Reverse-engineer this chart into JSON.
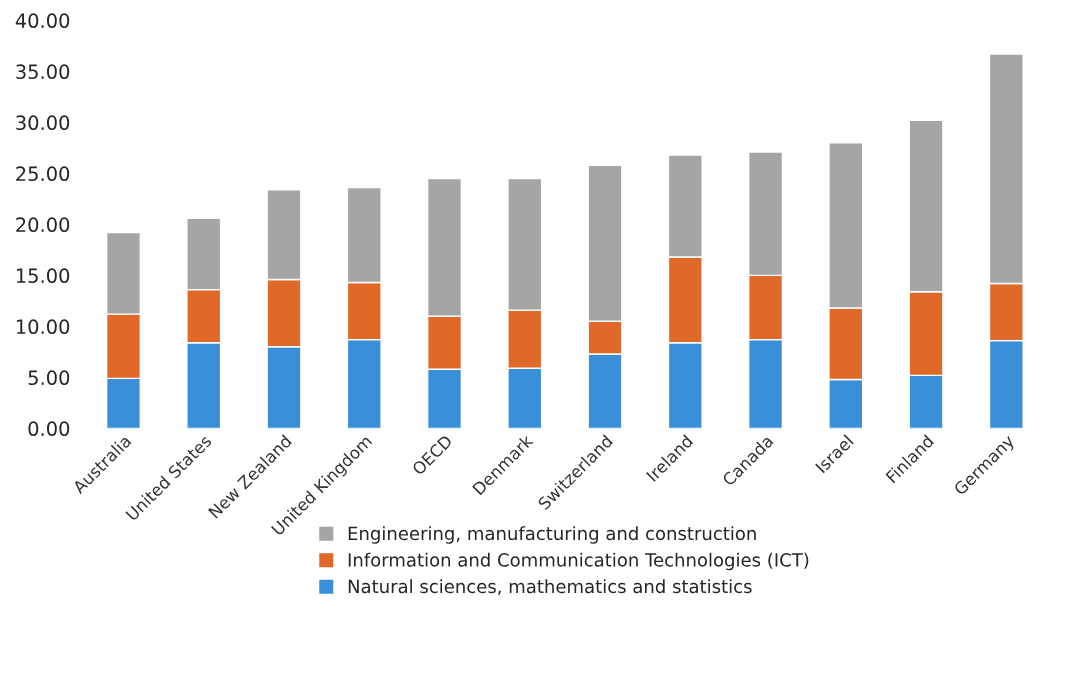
{
  "chart_data": {
    "type": "bar",
    "stacked": true,
    "categories": [
      "Australia",
      "United States",
      "New Zealand",
      "United Kingdom",
      "OECD",
      "Denmark",
      "Switzerland",
      "Ireland",
      "Canada",
      "Israel",
      "Finland",
      "Germany"
    ],
    "series": [
      {
        "name": "Natural sciences, mathematics and statistics",
        "color": "#3a8fd9",
        "values": [
          4.9,
          8.4,
          8.0,
          8.7,
          5.8,
          5.9,
          7.3,
          8.4,
          8.7,
          4.8,
          5.2,
          8.6
        ]
      },
      {
        "name": "Information and Communication Technologies (ICT)",
        "color": "#e0692a",
        "values": [
          6.3,
          5.2,
          6.6,
          5.6,
          5.2,
          5.7,
          3.2,
          8.4,
          6.3,
          7.0,
          8.2,
          5.6
        ]
      },
      {
        "name": "Engineering, manufacturing and construction",
        "color": "#a5a5a5",
        "values": [
          8.0,
          7.0,
          8.8,
          9.3,
          13.5,
          12.9,
          15.3,
          10.0,
          12.1,
          16.2,
          16.8,
          22.5
        ]
      }
    ],
    "ylim": [
      0,
      40
    ],
    "yticks": [
      {
        "value": 0,
        "label": "0.00"
      },
      {
        "value": 5,
        "label": "5.00"
      },
      {
        "value": 10,
        "label": "10.00"
      },
      {
        "value": 15,
        "label": "15.00"
      },
      {
        "value": 20,
        "label": "20.00"
      },
      {
        "value": 25,
        "label": "25.00"
      },
      {
        "value": 30,
        "label": "30.00"
      },
      {
        "value": 35,
        "label": "35.00"
      },
      {
        "value": 40,
        "label": "40.00"
      }
    ],
    "legend": "bottom"
  }
}
